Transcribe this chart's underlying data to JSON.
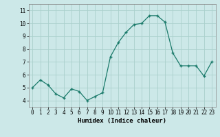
{
  "x": [
    0,
    1,
    2,
    3,
    4,
    5,
    6,
    7,
    8,
    9,
    10,
    11,
    12,
    13,
    14,
    15,
    16,
    17,
    18,
    19,
    20,
    21,
    22,
    23
  ],
  "y": [
    5.0,
    5.6,
    5.2,
    4.5,
    4.2,
    4.9,
    4.7,
    4.0,
    4.3,
    4.6,
    7.4,
    8.5,
    9.3,
    9.9,
    10.0,
    10.6,
    10.6,
    10.1,
    7.7,
    6.7,
    6.7,
    6.7,
    5.9,
    7.0
  ],
  "line_color": "#1a7a6a",
  "marker_color": "#1a7a6a",
  "bg_color": "#cce8e8",
  "grid_color": "#aad0cc",
  "xlabel": "Humidex (Indice chaleur)",
  "ylim": [
    3.5,
    11.5
  ],
  "xlim": [
    -0.5,
    23.5
  ],
  "yticks": [
    4,
    5,
    6,
    7,
    8,
    9,
    10,
    11
  ],
  "xtick_labels": [
    "0",
    "1",
    "2",
    "3",
    "4",
    "5",
    "6",
    "7",
    "8",
    "9",
    "10",
    "11",
    "12",
    "13",
    "14",
    "15",
    "16",
    "17",
    "18",
    "19",
    "20",
    "21",
    "22",
    "23"
  ],
  "label_fontsize": 6.5,
  "tick_fontsize": 5.5
}
